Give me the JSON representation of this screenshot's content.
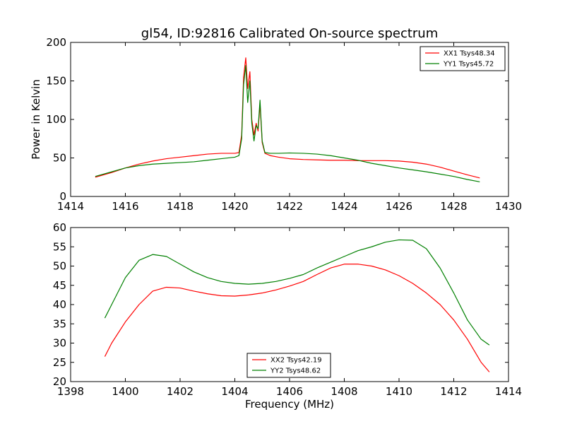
{
  "chart_data": [
    {
      "type": "line",
      "title": "gl54, ID:92816 Calibrated On-source spectrum",
      "xlabel": "",
      "ylabel": "Power in Kelvin",
      "xlim": [
        1414,
        1430
      ],
      "ylim": [
        0,
        200
      ],
      "xticks": [
        1414,
        1416,
        1418,
        1420,
        1422,
        1424,
        1426,
        1428,
        1430
      ],
      "yticks": [
        0,
        50,
        100,
        150,
        200
      ],
      "grid": false,
      "legend_position": "top-right",
      "series": [
        {
          "name": "XX1 Tsys48.34",
          "color": "#ff0000",
          "x": [
            1414.9,
            1415.5,
            1416.0,
            1416.5,
            1417.0,
            1417.5,
            1418.0,
            1418.5,
            1419.0,
            1419.5,
            1420.0,
            1420.15,
            1420.25,
            1420.32,
            1420.4,
            1420.47,
            1420.55,
            1420.62,
            1420.7,
            1420.78,
            1420.85,
            1420.92,
            1421.0,
            1421.1,
            1421.3,
            1421.6,
            1422.0,
            1422.5,
            1423.0,
            1423.5,
            1424.0,
            1424.5,
            1425.0,
            1425.5,
            1426.0,
            1426.5,
            1427.0,
            1427.5,
            1428.0,
            1428.5,
            1428.95
          ],
          "y": [
            25,
            31,
            37,
            42,
            46,
            49,
            51,
            53,
            55,
            56,
            56,
            57,
            80,
            155,
            180,
            140,
            162,
            100,
            80,
            95,
            85,
            120,
            70,
            56,
            53,
            51,
            49,
            48,
            47.5,
            47,
            47,
            46.5,
            46.5,
            46.5,
            46,
            44.5,
            42,
            38,
            33,
            28,
            24
          ]
        },
        {
          "name": "YY1 Tsys45.72",
          "color": "#008000",
          "x": [
            1414.9,
            1415.5,
            1416.0,
            1416.5,
            1417.0,
            1417.5,
            1418.0,
            1418.5,
            1419.0,
            1419.5,
            1420.0,
            1420.15,
            1420.25,
            1420.32,
            1420.4,
            1420.47,
            1420.55,
            1420.62,
            1420.7,
            1420.78,
            1420.85,
            1420.92,
            1421.0,
            1421.1,
            1421.3,
            1421.6,
            1422.0,
            1422.5,
            1423.0,
            1423.5,
            1424.0,
            1424.5,
            1425.0,
            1425.5,
            1426.0,
            1426.5,
            1427.0,
            1427.5,
            1428.0,
            1428.5,
            1428.95
          ],
          "y": [
            26,
            32,
            37,
            40,
            42,
            43,
            44,
            45,
            47,
            49,
            51,
            53,
            75,
            145,
            170,
            122,
            150,
            95,
            72,
            92,
            88,
            125,
            72,
            57,
            56,
            56,
            56.5,
            56,
            55,
            53,
            50,
            47,
            43,
            40,
            37,
            34.5,
            32,
            29,
            26,
            22,
            19
          ]
        }
      ]
    },
    {
      "type": "line",
      "title": "",
      "xlabel": "Frequency (MHz)",
      "ylabel": "",
      "xlim": [
        1398,
        1414
      ],
      "ylim": [
        20,
        60
      ],
      "xticks": [
        1398,
        1400,
        1402,
        1404,
        1406,
        1408,
        1410,
        1412,
        1414
      ],
      "yticks": [
        20,
        25,
        30,
        35,
        40,
        45,
        50,
        55,
        60
      ],
      "grid": false,
      "legend_position": "bottom-center",
      "series": [
        {
          "name": "XX2 Tsys42.19",
          "color": "#ff0000",
          "x": [
            1399.25,
            1399.5,
            1400.0,
            1400.5,
            1401.0,
            1401.5,
            1402.0,
            1402.5,
            1403.0,
            1403.5,
            1404.0,
            1404.5,
            1405.0,
            1405.5,
            1406.0,
            1406.5,
            1407.0,
            1407.5,
            1408.0,
            1408.5,
            1409.0,
            1409.5,
            1410.0,
            1410.5,
            1411.0,
            1411.5,
            1412.0,
            1412.5,
            1413.0,
            1413.3
          ],
          "y": [
            26.5,
            30,
            35.5,
            40,
            43.5,
            44.5,
            44.3,
            43.5,
            42.8,
            42.3,
            42.2,
            42.5,
            43,
            43.8,
            44.8,
            46,
            47.8,
            49.5,
            50.5,
            50.5,
            50,
            49,
            47.5,
            45.5,
            43,
            40,
            36,
            31,
            25,
            22.5
          ]
        },
        {
          "name": "YY2 Tsys48.62",
          "color": "#008000",
          "x": [
            1399.25,
            1399.5,
            1400.0,
            1400.5,
            1401.0,
            1401.5,
            1402.0,
            1402.5,
            1403.0,
            1403.5,
            1404.0,
            1404.5,
            1405.0,
            1405.5,
            1406.0,
            1406.5,
            1407.0,
            1407.5,
            1408.0,
            1408.5,
            1409.0,
            1409.5,
            1410.0,
            1410.5,
            1411.0,
            1411.5,
            1412.0,
            1412.5,
            1413.0,
            1413.3
          ],
          "y": [
            36.5,
            40,
            47,
            51.5,
            53,
            52.5,
            50.5,
            48.5,
            47,
            46,
            45.5,
            45.3,
            45.5,
            46,
            46.8,
            47.8,
            49.5,
            51,
            52.5,
            54,
            55,
            56.2,
            56.8,
            56.7,
            54.5,
            49.5,
            43,
            36,
            31,
            29.5
          ]
        }
      ]
    }
  ]
}
